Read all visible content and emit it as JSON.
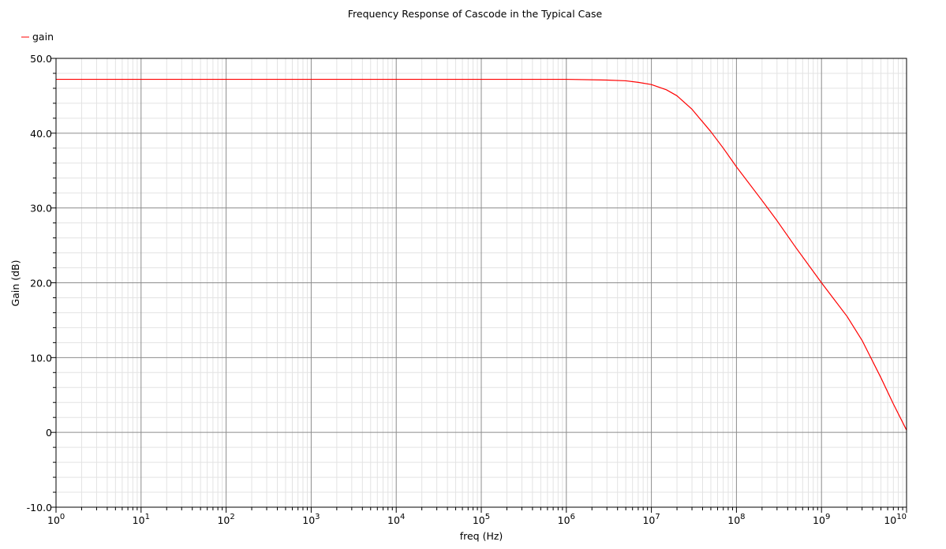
{
  "chart_data": {
    "type": "line",
    "title": "Frequency Response of Cascode in the Typical Case",
    "xlabel": "freq (Hz)",
    "ylabel": "Gain (dB)",
    "xscale": "log",
    "xlim": [
      1,
      10000000000
    ],
    "ylim": [
      -10,
      50
    ],
    "grid": true,
    "legend_position": "top-left",
    "x_tick_labels": [
      {
        "base": "10",
        "exp": "0"
      },
      {
        "base": "10",
        "exp": "1"
      },
      {
        "base": "10",
        "exp": "2"
      },
      {
        "base": "10",
        "exp": "3"
      },
      {
        "base": "10",
        "exp": "4"
      },
      {
        "base": "10",
        "exp": "5"
      },
      {
        "base": "10",
        "exp": "6"
      },
      {
        "base": "10",
        "exp": "7"
      },
      {
        "base": "10",
        "exp": "8"
      },
      {
        "base": "10",
        "exp": "9"
      },
      {
        "base": "10",
        "exp": "10"
      }
    ],
    "y_ticks": [
      -10,
      0,
      10,
      20,
      30,
      40,
      50
    ],
    "y_tick_labels": [
      "-10.0",
      "0",
      "10.0",
      "20.0",
      "30.0",
      "40.0",
      "50.0"
    ],
    "series": [
      {
        "name": "gain",
        "color": "#ff0000",
        "x": [
          1,
          10,
          100,
          1000,
          10000,
          100000,
          1000000,
          3000000,
          5000000,
          7000000,
          10000000,
          15000000,
          20000000,
          30000000,
          50000000,
          70000000,
          100000000,
          200000000,
          300000000,
          500000000,
          1000000000,
          2000000000,
          3000000000,
          5000000000,
          7000000000,
          10000000000
        ],
        "y": [
          47.2,
          47.2,
          47.2,
          47.2,
          47.2,
          47.2,
          47.2,
          47.1,
          47.0,
          46.8,
          46.5,
          45.8,
          45.0,
          43.2,
          40.2,
          38.0,
          35.5,
          31.0,
          28.3,
          24.7,
          20.0,
          15.5,
          12.3,
          7.3,
          3.8,
          0.3
        ]
      }
    ]
  }
}
